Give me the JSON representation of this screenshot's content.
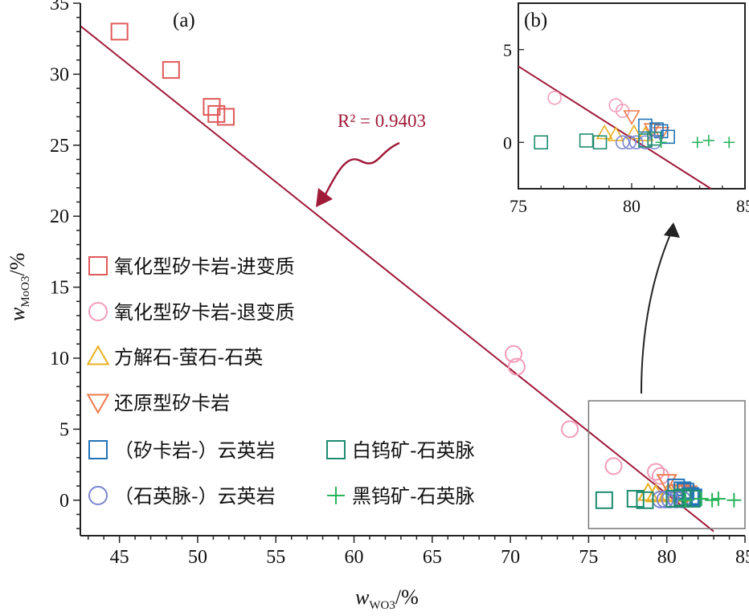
{
  "chart_data": [
    {
      "id": "a",
      "type": "scatter",
      "panel_label": "(a)",
      "xlabel": {
        "main": "w",
        "sub": "WO3",
        "suffix": "/%"
      },
      "ylabel": {
        "main": "w",
        "sub": "MoO3",
        "suffix": "/%"
      },
      "xlim": [
        42.5,
        85
      ],
      "ylim": [
        -2.5,
        35
      ],
      "xticks": [
        45,
        50,
        55,
        60,
        65,
        70,
        75,
        80,
        85
      ],
      "yticks": [
        0,
        5,
        10,
        15,
        20,
        25,
        30,
        35
      ],
      "xtick_labels": [
        "45",
        "50",
        "55",
        "60",
        "65",
        "70",
        "75",
        "80",
        "85"
      ],
      "ytick_labels": [
        "0",
        "5",
        "10",
        "15",
        "20",
        "25",
        "30",
        "35"
      ],
      "regression": {
        "label": "R² = 0.9403",
        "x": [
          42.5,
          83.0
        ],
        "y": [
          33.4,
          -2.2
        ]
      },
      "zoom_box": {
        "x": [
          75,
          85
        ],
        "y": [
          -2,
          7
        ]
      },
      "series": [
        {
          "name": "氧化型矽卡岩-进变质",
          "marker": "square",
          "color": "#e05a5a",
          "points": [
            [
              45.0,
              33.0
            ],
            [
              48.3,
              30.3
            ],
            [
              50.9,
              27.7
            ],
            [
              51.2,
              27.2
            ],
            [
              51.8,
              27.0
            ]
          ]
        },
        {
          "name": "氧化型矽卡岩-退变质",
          "marker": "circle",
          "color": "#f29cb8",
          "points": [
            [
              70.2,
              10.3
            ],
            [
              70.4,
              9.4
            ],
            [
              73.8,
              5.0
            ],
            [
              76.6,
              2.4
            ],
            [
              79.3,
              2.0
            ],
            [
              79.6,
              1.7
            ]
          ]
        },
        {
          "name": "方解石-萤石-石英",
          "marker": "triangle-up",
          "color": "#e8b020",
          "points": [
            [
              78.8,
              0.5
            ],
            [
              79.3,
              0.4
            ],
            [
              80.1,
              0.5
            ],
            [
              80.6,
              0.4
            ]
          ]
        },
        {
          "name": "还原型矽卡岩",
          "marker": "triangle-down",
          "color": "#ec7a4e",
          "points": [
            [
              80.0,
              1.3
            ],
            [
              80.9,
              0.6
            ],
            [
              81.3,
              0.5
            ]
          ]
        },
        {
          "name": "（矽卡岩-）云英岩",
          "marker": "square",
          "color": "#2274b8",
          "points": [
            [
              80.6,
              0.9
            ],
            [
              81.0,
              0.7
            ],
            [
              81.2,
              0.6
            ],
            [
              81.5,
              0.3
            ],
            [
              81.7,
              0.2
            ],
            [
              81.1,
              0.1
            ]
          ]
        },
        {
          "name": "（石英脉-）云英岩",
          "marker": "circle",
          "color": "#7b86d0",
          "points": [
            [
              79.6,
              0.05
            ],
            [
              79.9,
              0.05
            ],
            [
              80.2,
              0.05
            ],
            [
              80.6,
              0.05
            ],
            [
              81.0,
              0.05
            ]
          ]
        },
        {
          "name": "白钨矿-石英脉",
          "marker": "square",
          "color": "#1f8c70",
          "points": [
            [
              76.0,
              0.0
            ],
            [
              78.0,
              0.1
            ],
            [
              78.6,
              0.0
            ],
            [
              80.5,
              0.1
            ],
            [
              81.0,
              0.2
            ],
            [
              81.6,
              0.1
            ]
          ]
        },
        {
          "name": "黑钨矿-石英脉",
          "marker": "plus",
          "color": "#29b35a",
          "points": [
            [
              81.2,
              0.0
            ],
            [
              82.2,
              0.1
            ],
            [
              82.9,
              0.0
            ],
            [
              83.3,
              0.1
            ],
            [
              84.3,
              0.0
            ]
          ]
        }
      ]
    },
    {
      "id": "b",
      "type": "scatter",
      "panel_label": "(b)",
      "xlim": [
        75,
        85
      ],
      "ylim": [
        -2.5,
        7.5
      ],
      "xticks": [
        75,
        80,
        85
      ],
      "yticks": [
        0,
        5
      ],
      "xtick_labels": [
        "75",
        "80",
        "85"
      ],
      "ytick_labels": [
        "0",
        "5"
      ],
      "regression": {
        "x": [
          75,
          83.5
        ],
        "y": [
          4.1,
          -2.5
        ]
      },
      "series": [
        {
          "name": "氧化型矽卡岩-退变质",
          "marker": "circle",
          "color": "#f29cb8",
          "points": [
            [
              76.6,
              2.4
            ],
            [
              79.3,
              2.0
            ],
            [
              79.6,
              1.7
            ]
          ]
        },
        {
          "name": "方解石-萤石-石英",
          "marker": "triangle-up",
          "color": "#e8b020",
          "points": [
            [
              78.8,
              0.5
            ],
            [
              79.3,
              0.4
            ],
            [
              80.1,
              0.5
            ],
            [
              80.6,
              0.4
            ]
          ]
        },
        {
          "name": "还原型矽卡岩",
          "marker": "triangle-down",
          "color": "#ec7a4e",
          "points": [
            [
              80.0,
              1.4
            ],
            [
              80.9,
              0.7
            ],
            [
              81.3,
              0.5
            ]
          ]
        },
        {
          "name": "（矽卡岩-）云英岩",
          "marker": "square",
          "color": "#2274b8",
          "points": [
            [
              80.6,
              0.9
            ],
            [
              81.1,
              0.7
            ],
            [
              81.3,
              0.6
            ],
            [
              81.6,
              0.3
            ]
          ]
        },
        {
          "name": "（石英脉-）云英岩",
          "marker": "circle",
          "color": "#7b86d0",
          "points": [
            [
              79.6,
              0.0
            ],
            [
              79.9,
              0.0
            ],
            [
              80.2,
              0.0
            ],
            [
              80.6,
              0.0
            ],
            [
              81.0,
              0.0
            ]
          ]
        },
        {
          "name": "白钨矿-石英脉",
          "marker": "square",
          "color": "#1f8c70",
          "points": [
            [
              76.0,
              0.0
            ],
            [
              78.0,
              0.1
            ],
            [
              78.6,
              0.0
            ],
            [
              80.6,
              0.1
            ],
            [
              81.0,
              0.2
            ]
          ]
        },
        {
          "name": "黑钨矿-石英脉",
          "marker": "plus",
          "color": "#29b35a",
          "points": [
            [
              81.3,
              0.0
            ],
            [
              82.9,
              0.0
            ],
            [
              83.4,
              0.1
            ],
            [
              84.3,
              0.0
            ]
          ]
        }
      ]
    }
  ]
}
